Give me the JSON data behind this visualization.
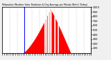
{
  "title": "Milwaukee Weather Solar Radiation & Day Average per Minute W/m2 (Today)",
  "bg_color": "#f0f0f0",
  "plot_bg_color": "#ffffff",
  "grid_color": "#aaaaaa",
  "red_color": "#ff0000",
  "blue_color": "#0000ff",
  "ylim": [
    0,
    1000
  ],
  "xlim": [
    0,
    1440
  ],
  "blue_x": 360,
  "sun_start": 330,
  "sun_end": 1110,
  "peak_minute": 780,
  "peak_value": 960,
  "cloud_gaps": [
    [
      680,
      698
    ],
    [
      708,
      726
    ],
    [
      736,
      754
    ],
    [
      764,
      778
    ],
    [
      786,
      796
    ],
    [
      842,
      860
    ],
    [
      896,
      910
    ]
  ],
  "ytick_vals": [
    100,
    200,
    300,
    400,
    500,
    600,
    700,
    800,
    900,
    1000
  ],
  "num_xticks": 48,
  "vgrid_lines": [
    0,
    120,
    240,
    360,
    480,
    600,
    720,
    840,
    960,
    1080,
    1200,
    1320,
    1440
  ]
}
